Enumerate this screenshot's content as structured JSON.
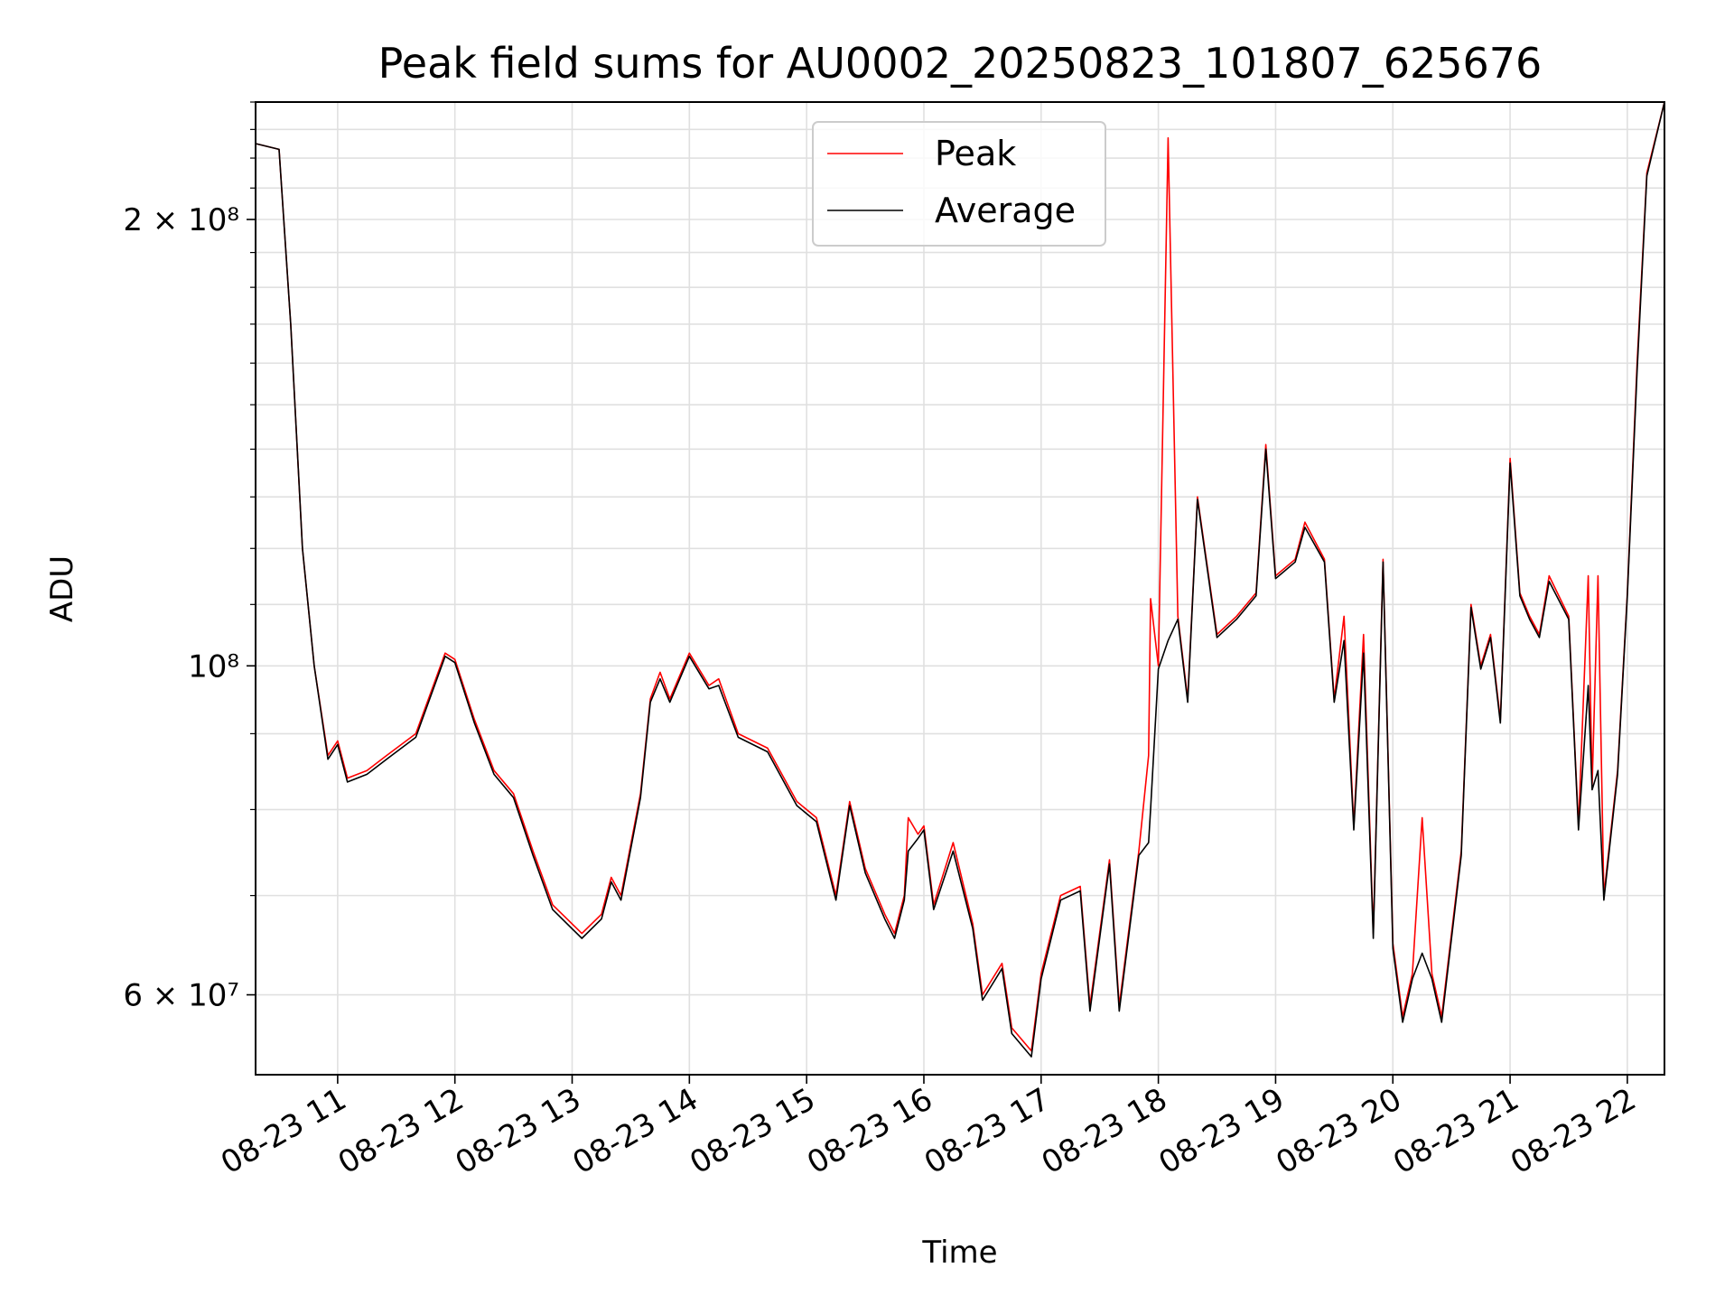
{
  "chart_data": {
    "type": "line",
    "title": "Peak field sums for AU0002_20250823_101807_625676",
    "xlabel": "Time",
    "ylabel": "ADU",
    "yscale": "log",
    "ylim": [
      53000000,
      240000000
    ],
    "xlim": [
      "08-23 10:18",
      "08-23 22:19"
    ],
    "grid": true,
    "legend_position": "upper center",
    "x_ticks": [
      "08-23 11",
      "08-23 12",
      "08-23 13",
      "08-23 14",
      "08-23 15",
      "08-23 16",
      "08-23 17",
      "08-23 18",
      "08-23 19",
      "08-23 20",
      "08-23 21",
      "08-23 22"
    ],
    "y_ticks": [
      {
        "value": 200000000,
        "label": "2 × 10⁸"
      },
      {
        "value": 100000000,
        "label": "10⁸"
      },
      {
        "value": 60000000,
        "label": "6 × 10⁷"
      }
    ],
    "series": [
      {
        "name": "Peak",
        "color": "#ff0000",
        "points": [
          [
            "08-23 10:18",
            225000000
          ],
          [
            "08-23 10:30",
            223000000
          ],
          [
            "08-23 10:36",
            170000000
          ],
          [
            "08-23 10:42",
            120000000
          ],
          [
            "08-23 10:48",
            100000000
          ],
          [
            "08-23 10:55",
            87000000
          ],
          [
            "08-23 11:00",
            89000000
          ],
          [
            "08-23 11:05",
            84000000
          ],
          [
            "08-23 11:15",
            85000000
          ],
          [
            "08-23 11:25",
            87000000
          ],
          [
            "08-23 11:40",
            90000000
          ],
          [
            "08-23 11:55",
            102000000
          ],
          [
            "08-23 12:00",
            101000000
          ],
          [
            "08-23 12:10",
            92000000
          ],
          [
            "08-23 12:20",
            85000000
          ],
          [
            "08-23 12:30",
            82000000
          ],
          [
            "08-23 12:40",
            75000000
          ],
          [
            "08-23 12:50",
            69000000
          ],
          [
            "08-23 13:05",
            66000000
          ],
          [
            "08-23 13:15",
            68000000
          ],
          [
            "08-23 13:20",
            72000000
          ],
          [
            "08-23 13:25",
            70000000
          ],
          [
            "08-23 13:35",
            82000000
          ],
          [
            "08-23 13:40",
            95000000
          ],
          [
            "08-23 13:45",
            99000000
          ],
          [
            "08-23 13:50",
            95000000
          ],
          [
            "08-23 14:00",
            102000000
          ],
          [
            "08-23 14:10",
            97000000
          ],
          [
            "08-23 14:15",
            98000000
          ],
          [
            "08-23 14:25",
            90000000
          ],
          [
            "08-23 14:40",
            88000000
          ],
          [
            "08-23 14:55",
            81000000
          ],
          [
            "08-23 15:05",
            79000000
          ],
          [
            "08-23 15:15",
            70000000
          ],
          [
            "08-23 15:22",
            81000000
          ],
          [
            "08-23 15:30",
            73000000
          ],
          [
            "08-23 15:40",
            68000000
          ],
          [
            "08-23 15:45",
            66000000
          ],
          [
            "08-23 15:50",
            70000000
          ],
          [
            "08-23 15:52",
            79000000
          ],
          [
            "08-23 15:57",
            77000000
          ],
          [
            "08-23 16:00",
            78000000
          ],
          [
            "08-23 16:05",
            69000000
          ],
          [
            "08-23 16:15",
            76000000
          ],
          [
            "08-23 16:25",
            67000000
          ],
          [
            "08-23 16:30",
            60000000
          ],
          [
            "08-23 16:40",
            63000000
          ],
          [
            "08-23 16:45",
            57000000
          ],
          [
            "08-23 16:55",
            55000000
          ],
          [
            "08-23 17:00",
            62000000
          ],
          [
            "08-23 17:10",
            70000000
          ],
          [
            "08-23 17:20",
            71000000
          ],
          [
            "08-23 17:25",
            59000000
          ],
          [
            "08-23 17:35",
            74000000
          ],
          [
            "08-23 17:40",
            59000000
          ],
          [
            "08-23 17:50",
            75000000
          ],
          [
            "08-23 17:55",
            87000000
          ],
          [
            "08-23 17:56",
            111000000
          ],
          [
            "08-23 18:00",
            100000000
          ],
          [
            "08-23 18:05",
            227000000
          ],
          [
            "08-23 18:10",
            108000000
          ],
          [
            "08-23 18:15",
            95000000
          ],
          [
            "08-23 18:20",
            130000000
          ],
          [
            "08-23 18:30",
            105000000
          ],
          [
            "08-23 18:40",
            108000000
          ],
          [
            "08-23 18:50",
            112000000
          ],
          [
            "08-23 18:55",
            141000000
          ],
          [
            "08-23 19:00",
            115000000
          ],
          [
            "08-23 19:10",
            118000000
          ],
          [
            "08-23 19:15",
            125000000
          ],
          [
            "08-23 19:25",
            118000000
          ],
          [
            "08-23 19:30",
            95000000
          ],
          [
            "08-23 19:35",
            108000000
          ],
          [
            "08-23 19:40",
            78000000
          ],
          [
            "08-23 19:45",
            105000000
          ],
          [
            "08-23 19:50",
            66000000
          ],
          [
            "08-23 19:55",
            118000000
          ],
          [
            "08-23 20:00",
            65000000
          ],
          [
            "08-23 20:05",
            58000000
          ],
          [
            "08-23 20:10",
            62000000
          ],
          [
            "08-23 20:15",
            79000000
          ],
          [
            "08-23 20:20",
            62000000
          ],
          [
            "08-23 20:25",
            58000000
          ],
          [
            "08-23 20:35",
            75000000
          ],
          [
            "08-23 20:40",
            110000000
          ],
          [
            "08-23 20:45",
            100000000
          ],
          [
            "08-23 20:50",
            105000000
          ],
          [
            "08-23 20:55",
            92000000
          ],
          [
            "08-23 21:00",
            138000000
          ],
          [
            "08-23 21:05",
            112000000
          ],
          [
            "08-23 21:10",
            108000000
          ],
          [
            "08-23 21:15",
            105000000
          ],
          [
            "08-23 21:20",
            115000000
          ],
          [
            "08-23 21:30",
            108000000
          ],
          [
            "08-23 21:35",
            78000000
          ],
          [
            "08-23 21:40",
            115000000
          ],
          [
            "08-23 21:42",
            83000000
          ],
          [
            "08-23 21:45",
            115000000
          ],
          [
            "08-23 21:48",
            70000000
          ],
          [
            "08-23 21:55",
            85000000
          ],
          [
            "08-23 22:00",
            112000000
          ],
          [
            "08-23 22:05",
            160000000
          ],
          [
            "08-23 22:10",
            215000000
          ],
          [
            "08-23 22:19",
            240000000
          ]
        ]
      },
      {
        "name": "Average",
        "color": "#000000",
        "points": [
          [
            "08-23 10:18",
            225000000
          ],
          [
            "08-23 10:30",
            223000000
          ],
          [
            "08-23 10:36",
            170000000
          ],
          [
            "08-23 10:42",
            120000000
          ],
          [
            "08-23 10:48",
            100000000
          ],
          [
            "08-23 10:55",
            86500000
          ],
          [
            "08-23 11:00",
            88500000
          ],
          [
            "08-23 11:05",
            83500000
          ],
          [
            "08-23 11:15",
            84500000
          ],
          [
            "08-23 11:25",
            86500000
          ],
          [
            "08-23 11:40",
            89500000
          ],
          [
            "08-23 11:55",
            101500000
          ],
          [
            "08-23 12:00",
            100500000
          ],
          [
            "08-23 12:10",
            91500000
          ],
          [
            "08-23 12:20",
            84500000
          ],
          [
            "08-23 12:30",
            81500000
          ],
          [
            "08-23 12:40",
            74500000
          ],
          [
            "08-23 12:50",
            68500000
          ],
          [
            "08-23 13:05",
            65500000
          ],
          [
            "08-23 13:15",
            67500000
          ],
          [
            "08-23 13:20",
            71500000
          ],
          [
            "08-23 13:25",
            69500000
          ],
          [
            "08-23 13:35",
            81500000
          ],
          [
            "08-23 13:40",
            94500000
          ],
          [
            "08-23 13:45",
            98000000
          ],
          [
            "08-23 13:50",
            94500000
          ],
          [
            "08-23 14:00",
            101500000
          ],
          [
            "08-23 14:10",
            96500000
          ],
          [
            "08-23 14:15",
            97000000
          ],
          [
            "08-23 14:25",
            89500000
          ],
          [
            "08-23 14:40",
            87500000
          ],
          [
            "08-23 14:55",
            80500000
          ],
          [
            "08-23 15:05",
            78500000
          ],
          [
            "08-23 15:15",
            69500000
          ],
          [
            "08-23 15:22",
            80500000
          ],
          [
            "08-23 15:30",
            72500000
          ],
          [
            "08-23 15:40",
            67500000
          ],
          [
            "08-23 15:45",
            65500000
          ],
          [
            "08-23 15:50",
            69500000
          ],
          [
            "08-23 15:52",
            75000000
          ],
          [
            "08-23 15:57",
            76500000
          ],
          [
            "08-23 16:00",
            77500000
          ],
          [
            "08-23 16:05",
            68500000
          ],
          [
            "08-23 16:15",
            75000000
          ],
          [
            "08-23 16:25",
            66500000
          ],
          [
            "08-23 16:30",
            59500000
          ],
          [
            "08-23 16:40",
            62500000
          ],
          [
            "08-23 16:45",
            56500000
          ],
          [
            "08-23 16:55",
            54500000
          ],
          [
            "08-23 17:00",
            61500000
          ],
          [
            "08-23 17:10",
            69500000
          ],
          [
            "08-23 17:20",
            70500000
          ],
          [
            "08-23 17:25",
            58500000
          ],
          [
            "08-23 17:35",
            73500000
          ],
          [
            "08-23 17:40",
            58500000
          ],
          [
            "08-23 17:50",
            74500000
          ],
          [
            "08-23 17:55",
            76000000
          ],
          [
            "08-23 17:56",
            80000000
          ],
          [
            "08-23 18:00",
            99500000
          ],
          [
            "08-23 18:05",
            104000000
          ],
          [
            "08-23 18:10",
            107500000
          ],
          [
            "08-23 18:15",
            94500000
          ],
          [
            "08-23 18:20",
            129500000
          ],
          [
            "08-23 18:30",
            104500000
          ],
          [
            "08-23 18:40",
            107500000
          ],
          [
            "08-23 18:50",
            111500000
          ],
          [
            "08-23 18:55",
            140000000
          ],
          [
            "08-23 19:00",
            114500000
          ],
          [
            "08-23 19:10",
            117500000
          ],
          [
            "08-23 19:15",
            124000000
          ],
          [
            "08-23 19:25",
            117500000
          ],
          [
            "08-23 19:30",
            94500000
          ],
          [
            "08-23 19:35",
            104000000
          ],
          [
            "08-23 19:40",
            77500000
          ],
          [
            "08-23 19:45",
            102000000
          ],
          [
            "08-23 19:50",
            65500000
          ],
          [
            "08-23 19:55",
            117500000
          ],
          [
            "08-23 20:00",
            64500000
          ],
          [
            "08-23 20:05",
            57500000
          ],
          [
            "08-23 20:10",
            61500000
          ],
          [
            "08-23 20:15",
            64000000
          ],
          [
            "08-23 20:20",
            61500000
          ],
          [
            "08-23 20:25",
            57500000
          ],
          [
            "08-23 20:35",
            74500000
          ],
          [
            "08-23 20:40",
            109500000
          ],
          [
            "08-23 20:45",
            99500000
          ],
          [
            "08-23 20:50",
            104500000
          ],
          [
            "08-23 20:55",
            91500000
          ],
          [
            "08-23 21:00",
            137000000
          ],
          [
            "08-23 21:05",
            111500000
          ],
          [
            "08-23 21:10",
            107500000
          ],
          [
            "08-23 21:15",
            104500000
          ],
          [
            "08-23 21:20",
            114000000
          ],
          [
            "08-23 21:30",
            107500000
          ],
          [
            "08-23 21:35",
            77500000
          ],
          [
            "08-23 21:40",
            97000000
          ],
          [
            "08-23 21:42",
            82500000
          ],
          [
            "08-23 21:45",
            85000000
          ],
          [
            "08-23 21:48",
            69500000
          ],
          [
            "08-23 21:55",
            84500000
          ],
          [
            "08-23 22:00",
            111500000
          ],
          [
            "08-23 22:05",
            158000000
          ],
          [
            "08-23 22:10",
            214000000
          ],
          [
            "08-23 22:19",
            240000000
          ]
        ]
      }
    ]
  }
}
